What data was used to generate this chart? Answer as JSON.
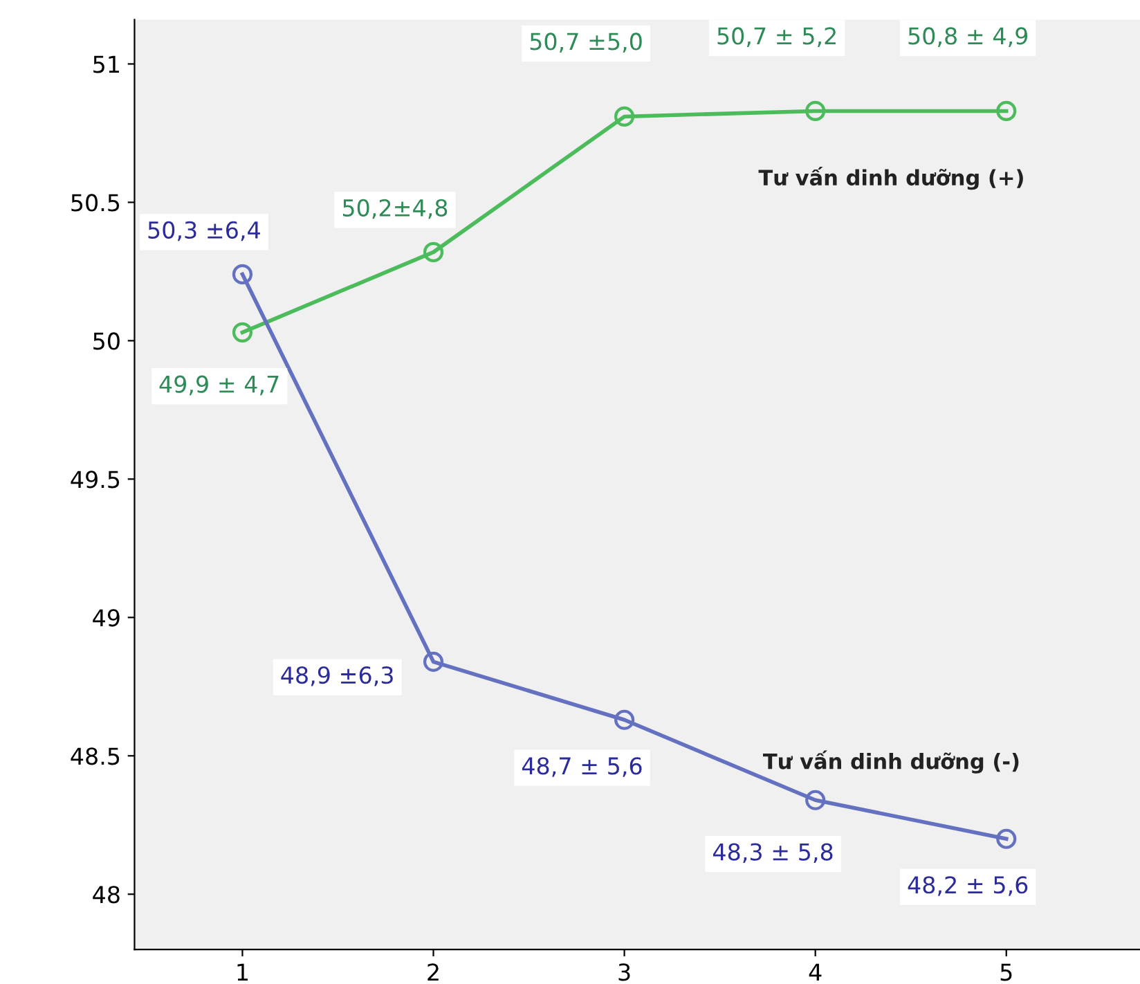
{
  "chart_data": {
    "type": "line",
    "x": [
      1,
      2,
      3,
      4,
      5
    ],
    "xlim": [
      0.435,
      5.7
    ],
    "xticks": [
      1,
      2,
      3,
      4,
      5
    ],
    "ylim": [
      47.8,
      51.16
    ],
    "yticks": [
      48,
      48.5,
      49,
      49.5,
      50,
      50.5,
      51
    ],
    "marker": "circle",
    "line_style": "solid",
    "grid": false,
    "series": [
      {
        "name": "Tư vấn dinh dưỡng (+)",
        "color": "#4cbb5c",
        "values": [
          50.03,
          50.32,
          50.81,
          50.83,
          50.83
        ]
      },
      {
        "name": "Tư vấn dinh dưỡng (-)",
        "color": "#6470c0",
        "values": [
          50.24,
          48.84,
          48.63,
          48.34,
          48.2
        ]
      }
    ],
    "annotations": [
      "49,9 ± 4,7",
      "50,2±4,8",
      "50,7 ±5,0",
      "50,7 ± 5,2",
      "50,8 ± 4,9",
      "50,3 ±6,4",
      "48,9 ±6,3",
      "48,7 ± 5,6",
      "48,3 ± 5,8",
      "48,2 ± 5,6"
    ]
  }
}
